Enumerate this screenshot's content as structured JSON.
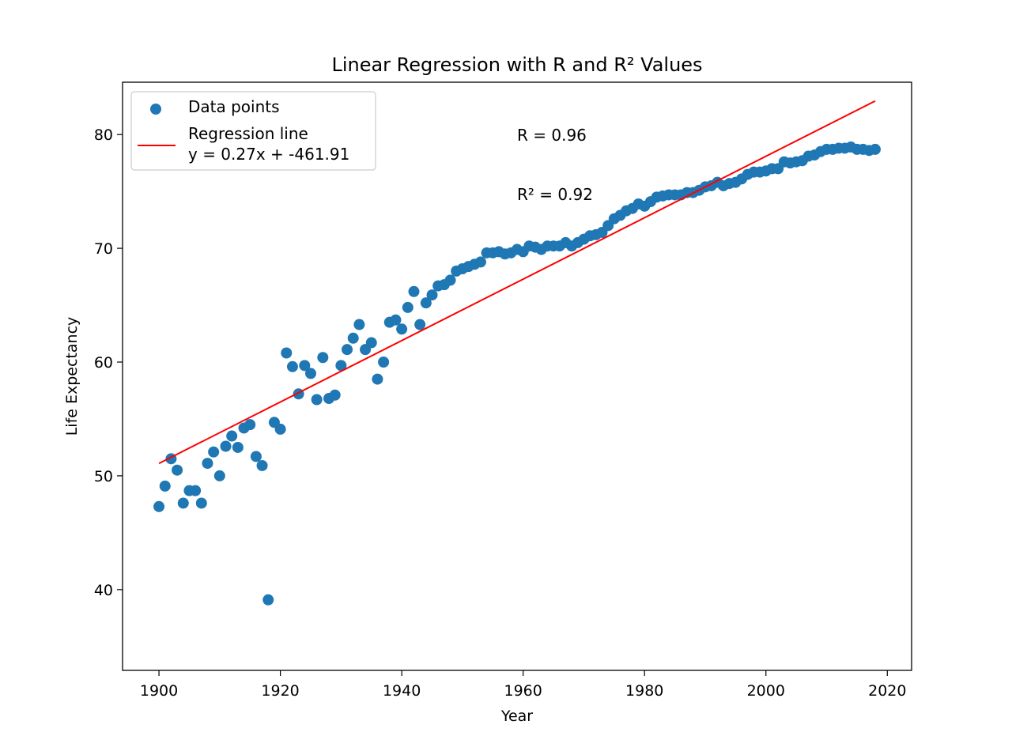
{
  "chart_data": {
    "type": "scatter",
    "title": "Linear Regression with R and R² Values",
    "xlabel": "Year",
    "ylabel": "Life Expectancy",
    "xlim": [
      1894,
      2024
    ],
    "ylim": [
      32.9,
      84.6
    ],
    "xticks": [
      1900,
      1920,
      1940,
      1960,
      1980,
      2000,
      2020
    ],
    "yticks": [
      40,
      50,
      60,
      70,
      80
    ],
    "grid": false,
    "legend": {
      "position": "upper-left",
      "entries": [
        "Data points",
        "Regression line",
        "y = 0.27x + -461.91"
      ]
    },
    "annotations": {
      "r": "R = 0.96",
      "r2": "R² = 0.92"
    },
    "colors": {
      "points": "#1f77b4",
      "line": "#ff0000"
    },
    "series": [
      {
        "name": "Data points",
        "type": "scatter",
        "x": [
          1900,
          1901,
          1902,
          1903,
          1904,
          1905,
          1906,
          1907,
          1908,
          1909,
          1910,
          1911,
          1912,
          1913,
          1914,
          1915,
          1916,
          1917,
          1918,
          1919,
          1920,
          1921,
          1922,
          1923,
          1924,
          1925,
          1926,
          1927,
          1928,
          1929,
          1930,
          1931,
          1932,
          1933,
          1934,
          1935,
          1936,
          1937,
          1938,
          1939,
          1940,
          1941,
          1942,
          1943,
          1944,
          1945,
          1946,
          1947,
          1948,
          1949,
          1950,
          1951,
          1952,
          1953,
          1954,
          1955,
          1956,
          1957,
          1958,
          1959,
          1960,
          1961,
          1962,
          1963,
          1964,
          1965,
          1966,
          1967,
          1968,
          1969,
          1970,
          1971,
          1972,
          1973,
          1974,
          1975,
          1976,
          1977,
          1978,
          1979,
          1980,
          1981,
          1982,
          1983,
          1984,
          1985,
          1986,
          1987,
          1988,
          1989,
          1990,
          1991,
          1992,
          1993,
          1994,
          1995,
          1996,
          1997,
          1998,
          1999,
          2000,
          2001,
          2002,
          2003,
          2004,
          2005,
          2006,
          2007,
          2008,
          2009,
          2010,
          2011,
          2012,
          2013,
          2014,
          2015,
          2016,
          2017,
          2018
        ],
        "y": [
          47.3,
          49.1,
          51.5,
          50.5,
          47.6,
          48.7,
          48.7,
          47.6,
          51.1,
          52.1,
          50.0,
          52.6,
          53.5,
          52.5,
          54.2,
          54.5,
          51.7,
          50.9,
          39.1,
          54.7,
          54.1,
          60.8,
          59.6,
          57.2,
          59.7,
          59.0,
          56.7,
          60.4,
          56.8,
          57.1,
          59.7,
          61.1,
          62.1,
          63.3,
          61.1,
          61.7,
          58.5,
          60.0,
          63.5,
          63.7,
          62.9,
          64.8,
          66.2,
          63.3,
          65.2,
          65.9,
          66.7,
          66.8,
          67.2,
          68.0,
          68.2,
          68.4,
          68.6,
          68.8,
          69.6,
          69.6,
          69.7,
          69.5,
          69.6,
          69.9,
          69.7,
          70.2,
          70.1,
          69.9,
          70.2,
          70.2,
          70.2,
          70.5,
          70.2,
          70.5,
          70.8,
          71.1,
          71.2,
          71.4,
          72.0,
          72.6,
          72.9,
          73.3,
          73.5,
          73.9,
          73.7,
          74.1,
          74.5,
          74.6,
          74.7,
          74.7,
          74.7,
          74.9,
          74.9,
          75.1,
          75.4,
          75.5,
          75.8,
          75.5,
          75.7,
          75.8,
          76.1,
          76.5,
          76.7,
          76.7,
          76.8,
          77.0,
          77.0,
          77.6,
          77.5,
          77.6,
          77.7,
          78.1,
          78.2,
          78.5,
          78.7,
          78.7,
          78.8,
          78.8,
          78.9,
          78.7,
          78.7,
          78.6,
          78.7
        ]
      },
      {
        "name": "Regression line",
        "type": "line",
        "x": [
          1900,
          2018
        ],
        "y": [
          51.09,
          82.95
        ]
      }
    ]
  }
}
